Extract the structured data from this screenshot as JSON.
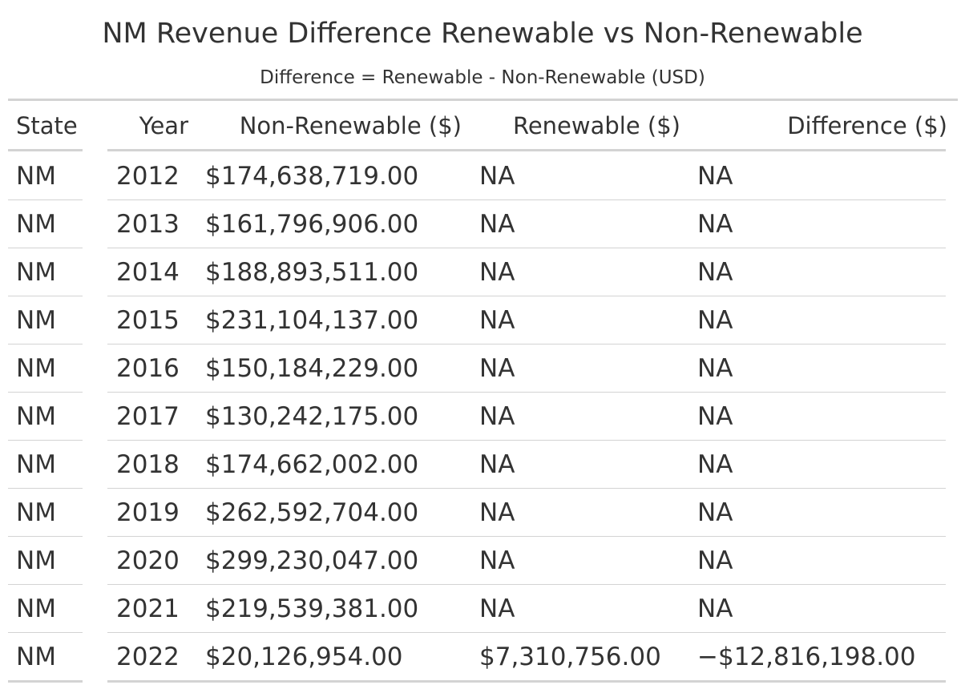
{
  "title": "NM Revenue Difference Renewable vs Non-Renewable",
  "subtitle": "Difference = Renewable - Non-Renewable (USD)",
  "columns": {
    "state": "State",
    "year": "Year",
    "non_renewable": "Non-Renewable ($)",
    "renewable": "Renewable ($)",
    "difference": "Difference ($)"
  },
  "rows": [
    {
      "state": "NM",
      "year": "2012",
      "non_renewable": "$174,638,719.00",
      "renewable": "NA",
      "difference": "NA"
    },
    {
      "state": "NM",
      "year": "2013",
      "non_renewable": "$161,796,906.00",
      "renewable": "NA",
      "difference": "NA"
    },
    {
      "state": "NM",
      "year": "2014",
      "non_renewable": "$188,893,511.00",
      "renewable": "NA",
      "difference": "NA"
    },
    {
      "state": "NM",
      "year": "2015",
      "non_renewable": "$231,104,137.00",
      "renewable": "NA",
      "difference": "NA"
    },
    {
      "state": "NM",
      "year": "2016",
      "non_renewable": "$150,184,229.00",
      "renewable": "NA",
      "difference": "NA"
    },
    {
      "state": "NM",
      "year": "2017",
      "non_renewable": "$130,242,175.00",
      "renewable": "NA",
      "difference": "NA"
    },
    {
      "state": "NM",
      "year": "2018",
      "non_renewable": "$174,662,002.00",
      "renewable": "NA",
      "difference": "NA"
    },
    {
      "state": "NM",
      "year": "2019",
      "non_renewable": "$262,592,704.00",
      "renewable": "NA",
      "difference": "NA"
    },
    {
      "state": "NM",
      "year": "2020",
      "non_renewable": "$299,230,047.00",
      "renewable": "NA",
      "difference": "NA"
    },
    {
      "state": "NM",
      "year": "2021",
      "non_renewable": "$219,539,381.00",
      "renewable": "NA",
      "difference": "NA"
    },
    {
      "state": "NM",
      "year": "2022",
      "non_renewable": "$20,126,954.00",
      "renewable": "$7,310,756.00",
      "difference": "−$12,816,198.00"
    }
  ]
}
